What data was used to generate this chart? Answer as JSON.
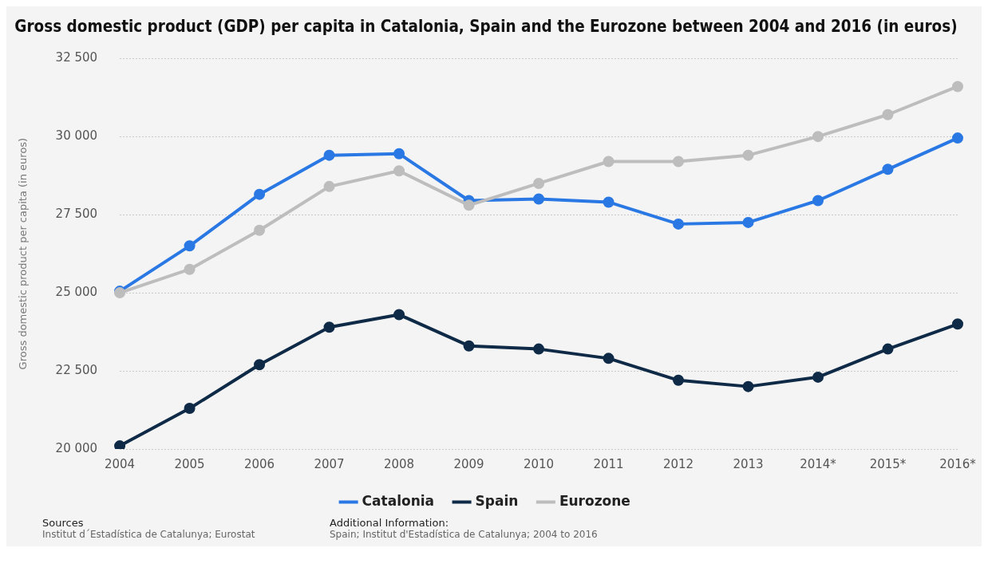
{
  "chart_data": {
    "type": "line",
    "title": "Gross domestic product (GDP) per capita in Catalonia, Spain and the Eurozone between 2004 and 2016 (in euros)",
    "ylabel": "Gross domestic product per capita (in euros)",
    "categories": [
      "2004",
      "2005",
      "2006",
      "2007",
      "2008",
      "2009",
      "2010",
      "2011",
      "2012",
      "2013",
      "2014*",
      "2015*",
      "2016*"
    ],
    "series": [
      {
        "name": "Catalonia",
        "color": "#2a78e4",
        "values": [
          25050,
          26500,
          28150,
          29400,
          29450,
          27950,
          28000,
          27900,
          27200,
          27250,
          27950,
          28950,
          29950
        ]
      },
      {
        "name": "Spain",
        "color": "#0e2a47",
        "values": [
          20100,
          21300,
          22700,
          23900,
          24300,
          23300,
          23200,
          22900,
          22200,
          22000,
          22300,
          23200,
          24000
        ]
      },
      {
        "name": "Eurozone",
        "color": "#bdbdbd",
        "values": [
          25000,
          25750,
          27000,
          28400,
          28900,
          27800,
          28500,
          29200,
          29200,
          29400,
          30000,
          30700,
          31600
        ]
      }
    ],
    "ylim": [
      20000,
      32500
    ],
    "yticks": [
      {
        "value": 20000,
        "label": "20 000"
      },
      {
        "value": 22500,
        "label": "22 500"
      },
      {
        "value": 25000,
        "label": "25 000"
      },
      {
        "value": 27500,
        "label": "27 500"
      },
      {
        "value": 30000,
        "label": "30 000"
      },
      {
        "value": 32500,
        "label": "32 500"
      }
    ],
    "grid": "y",
    "legend": "bottom",
    "marker": "circle",
    "line_style": "solid",
    "annotations": [
      "Sources",
      "Institut d´Estadística de Catalunya; Eurostat",
      "Additional Information:",
      "Spain; Institut d'Estadística de Catalunya; 2004 to 2016"
    ]
  }
}
